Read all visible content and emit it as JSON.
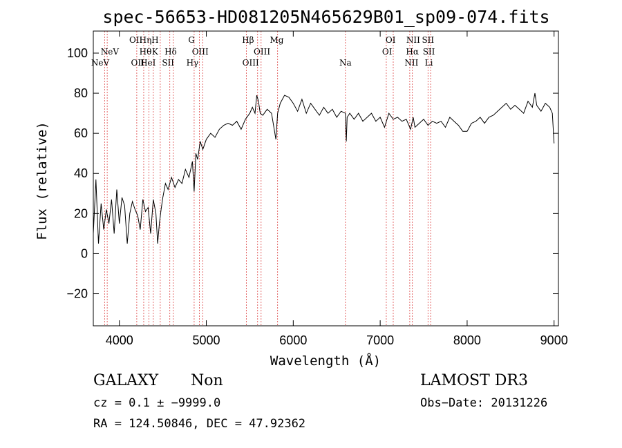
{
  "chart_data": {
    "type": "line",
    "title": "spec-56653-HD081205N465629B01_sp09-074.fits",
    "xlabel": "Wavelength (Å)",
    "ylabel": "Flux (relative)",
    "xlim": [
      3700,
      9050
    ],
    "ylim": [
      -36,
      111
    ],
    "xticks": [
      4000,
      5000,
      6000,
      7000,
      8000,
      9000
    ],
    "yticks": [
      -20,
      0,
      20,
      40,
      60,
      80,
      100
    ],
    "grid": false,
    "series": [
      {
        "line_color": "#000000",
        "x": [
          3700,
          3730,
          3760,
          3790,
          3820,
          3850,
          3880,
          3910,
          3940,
          3970,
          4000,
          4030,
          4060,
          4090,
          4120,
          4150,
          4180,
          4210,
          4240,
          4270,
          4300,
          4330,
          4360,
          4390,
          4420,
          4440,
          4460,
          4480,
          4500,
          4530,
          4560,
          4600,
          4640,
          4680,
          4720,
          4760,
          4800,
          4840,
          4860,
          4880,
          4900,
          4930,
          4960,
          5000,
          5050,
          5100,
          5150,
          5200,
          5250,
          5300,
          5350,
          5400,
          5450,
          5500,
          5530,
          5560,
          5580,
          5600,
          5620,
          5650,
          5700,
          5750,
          5800,
          5820,
          5850,
          5900,
          5950,
          6000,
          6050,
          6100,
          6150,
          6200,
          6250,
          6300,
          6350,
          6400,
          6450,
          6500,
          6550,
          6600,
          6610,
          6620,
          6650,
          6700,
          6750,
          6800,
          6850,
          6900,
          6950,
          7000,
          7050,
          7100,
          7150,
          7200,
          7250,
          7300,
          7350,
          7380,
          7400,
          7450,
          7500,
          7550,
          7600,
          7650,
          7700,
          7750,
          7800,
          7850,
          7900,
          7950,
          8000,
          8050,
          8100,
          8150,
          8200,
          8250,
          8300,
          8350,
          8400,
          8450,
          8500,
          8550,
          8600,
          8650,
          8700,
          8750,
          8780,
          8800,
          8850,
          8900,
          8950,
          8980,
          9000
        ],
        "y": [
          10,
          37,
          5,
          25,
          12,
          22,
          15,
          27,
          10,
          32,
          15,
          28,
          24,
          5,
          20,
          26,
          22,
          19,
          12,
          27,
          21,
          23,
          10,
          27,
          20,
          5,
          15,
          22,
          28,
          35,
          32,
          38,
          33,
          37,
          35,
          42,
          38,
          46,
          31,
          50,
          47,
          56,
          52,
          57,
          60,
          58,
          62,
          64,
          65,
          64,
          66,
          62,
          67,
          70,
          73,
          70,
          79,
          76,
          70,
          69,
          72,
          70,
          57,
          70,
          75,
          79,
          78,
          75,
          71,
          77,
          70,
          75,
          72,
          69,
          73,
          70,
          72,
          68,
          71,
          70,
          56,
          68,
          70,
          67,
          70,
          66,
          68,
          70,
          66,
          68,
          63,
          70,
          67,
          68,
          66,
          67,
          62,
          68,
          63,
          65,
          67,
          64,
          66,
          65,
          66,
          63,
          68,
          66,
          64,
          61,
          61,
          65,
          66,
          68,
          65,
          68,
          69,
          71,
          73,
          75,
          72,
          74,
          72,
          70,
          76,
          73,
          80,
          74,
          71,
          75,
          73,
          70,
          55
        ]
      }
    ],
    "emission_lines_top": [
      "OII",
      "Hη",
      "H",
      "G",
      "Hβ",
      "Mg",
      "OI",
      "NII",
      "SII"
    ],
    "emission_lines_mid": [
      "NeV",
      "Hθ",
      "K",
      "Hδ",
      "OIII",
      "OIII",
      "OI",
      "Hα",
      "SII"
    ],
    "emission_lines_bot": [
      "NeV",
      "OII",
      "HeI",
      "SII",
      "Hγ",
      "OIII",
      "Na",
      "NII",
      "Li"
    ],
    "info": {
      "class": "GALAXY",
      "subclass": "Non",
      "survey": "LAMOST DR3",
      "cz": "cz = 0.1 ± −9999.0",
      "obs_date": "Obs−Date: 20131226",
      "coords": "RA = 124.50846, DEC =  47.92362"
    }
  }
}
